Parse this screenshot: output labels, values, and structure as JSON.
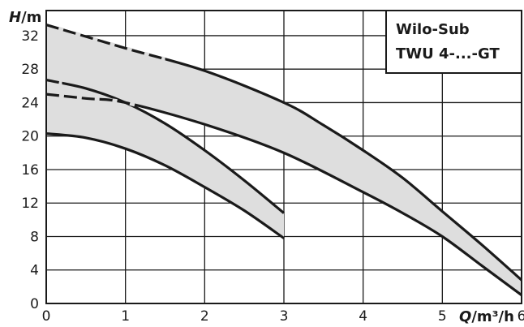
{
  "chart_data": {
    "type": "line",
    "title_lines": [
      "Wilo-Sub",
      "TWU 4-...-GT"
    ],
    "xlabel": {
      "var": "Q",
      "unit": "/m³/h"
    },
    "ylabel": {
      "var": "H",
      "unit": "/m"
    },
    "xlim": [
      0,
      6
    ],
    "ylim": [
      0,
      35
    ],
    "x_ticks": [
      0,
      1,
      2,
      3,
      4,
      5,
      6
    ],
    "y_ticks": [
      0,
      4,
      8,
      12,
      16,
      20,
      24,
      28,
      32
    ],
    "grid": true,
    "fill_color": "#dedede",
    "line_color": "#1a1a1a",
    "bands": [
      {
        "upper": {
          "x": [
            0,
            0.5,
            1.0,
            1.5,
            2.0,
            2.5,
            3.0
          ],
          "y": [
            26.7,
            25.7,
            24.0,
            21.5,
            18.3,
            14.7,
            10.8
          ],
          "dashed_until_x": 0.2
        },
        "lower": {
          "x": [
            0,
            0.5,
            1.0,
            1.5,
            2.0,
            2.5,
            3.0
          ],
          "y": [
            20.3,
            19.8,
            18.5,
            16.5,
            13.9,
            11.1,
            7.8
          ],
          "dashed_until_x": 0.1
        }
      },
      {
        "upper": {
          "x": [
            0,
            1,
            2,
            3,
            3.5,
            4,
            4.5,
            5,
            5.5,
            6
          ],
          "y": [
            33.3,
            30.5,
            27.8,
            24.0,
            21.3,
            18.3,
            15.0,
            11.0,
            7.0,
            2.8
          ],
          "dashed_until_x": 1.5
        },
        "lower": {
          "x": [
            0,
            0.5,
            1,
            2,
            3,
            4,
            4.5,
            5,
            5.5,
            6
          ],
          "y": [
            25.0,
            24.5,
            24.0,
            21.4,
            18.0,
            13.3,
            10.8,
            8.0,
            4.5,
            1.0
          ],
          "dashed_until_x": 1.2
        }
      }
    ]
  }
}
